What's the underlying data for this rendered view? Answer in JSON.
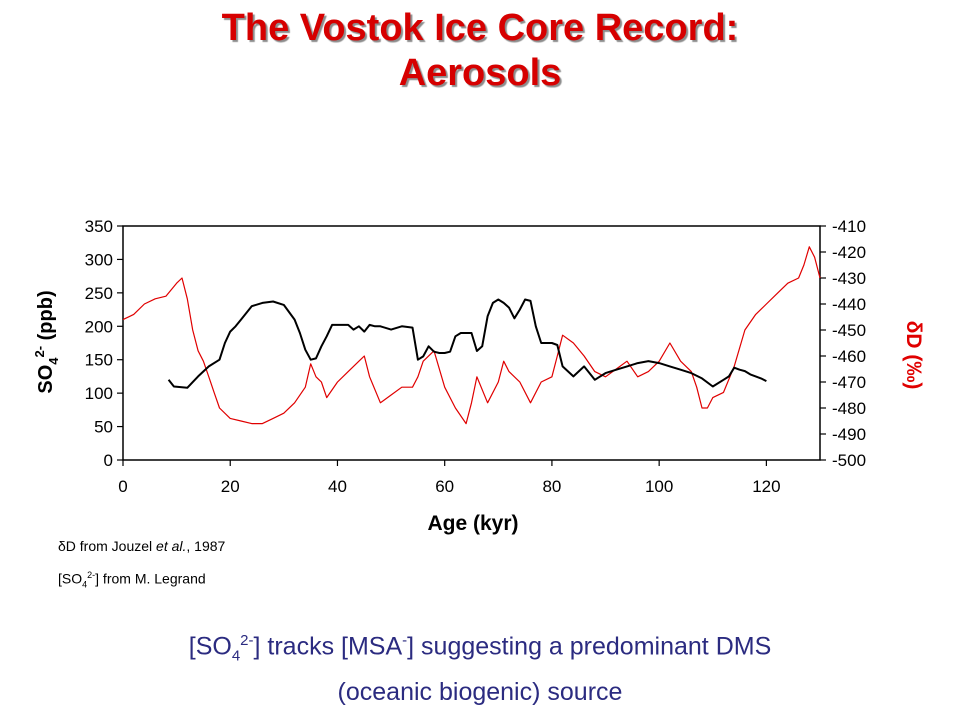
{
  "title": {
    "line1": "The Vostok Ice Core Record:",
    "line2": "Aerosols"
  },
  "credits": {
    "line1": {
      "delta": "δ",
      "pre": "D from Jouzel ",
      "ital": "et al.",
      "post": ", 1987"
    },
    "line2": {
      "open": "[SO",
      "sub": "4",
      "sup": "2-",
      "close": "] from M. Legrand"
    }
  },
  "conclusion": {
    "part1": "[SO",
    "sub1": "4",
    "sup1": "2-",
    "part2": "] tracks [MSA",
    "sup2": "-",
    "part3": "] suggesting a predominant DMS",
    "line2": "(oceanic biogenic) source"
  },
  "colors": {
    "sulfate": "#000000",
    "deuterium": "#e00000",
    "title": "#d60000",
    "conclusion": "#2b2b80"
  },
  "chart_data": {
    "type": "line",
    "xlabel": "Age (kyr)",
    "ylabel_left": {
      "base": "SO",
      "sub": "4",
      "sup": "2-",
      "rest": " (ppb)"
    },
    "ylabel_right": {
      "delta": "δ",
      "rest": "D (‰)"
    },
    "xlim": [
      0,
      130
    ],
    "ylim_left": [
      0,
      350
    ],
    "ylim_right": [
      -500,
      -410
    ],
    "x_ticks": [
      0,
      20,
      40,
      60,
      80,
      100,
      120
    ],
    "y_left_ticks": [
      0,
      50,
      100,
      150,
      200,
      250,
      300,
      350
    ],
    "y_right_ticks": [
      -410,
      -420,
      -430,
      -440,
      -450,
      -460,
      -470,
      -480,
      -490,
      -500
    ],
    "grid": false,
    "legend": "none",
    "series": [
      {
        "axis": "left",
        "color": "#000000",
        "x": [
          8.5,
          9.5,
          12,
          14,
          16,
          18,
          19,
          20,
          21,
          22,
          24,
          26,
          28,
          30,
          32,
          33,
          34,
          35,
          36,
          37,
          38,
          39,
          40,
          42,
          43,
          44,
          45,
          46,
          47,
          48,
          50,
          52,
          54,
          55,
          56,
          57,
          58,
          59,
          60,
          61,
          62,
          63,
          64,
          65,
          66,
          67,
          68,
          69,
          70,
          71,
          72,
          73,
          74,
          75,
          76,
          77,
          78,
          80,
          81,
          82,
          84,
          86,
          88,
          90,
          92,
          94,
          96,
          98,
          100,
          102,
          104,
          106,
          108,
          110,
          112,
          113,
          114,
          115,
          116,
          117,
          118,
          119,
          120
        ],
        "values": [
          120,
          110,
          108,
          125,
          140,
          150,
          175,
          192,
          200,
          210,
          230,
          235,
          237,
          232,
          210,
          190,
          165,
          150,
          152,
          170,
          185,
          202,
          202,
          202,
          195,
          200,
          192,
          202,
          200,
          200,
          195,
          200,
          198,
          150,
          155,
          170,
          162,
          160,
          160,
          162,
          185,
          190,
          190,
          190,
          163,
          170,
          215,
          235,
          240,
          235,
          228,
          212,
          225,
          240,
          238,
          200,
          175,
          175,
          172,
          140,
          125,
          140,
          120,
          130,
          135,
          140,
          145,
          148,
          145,
          140,
          135,
          130,
          122,
          110,
          120,
          125,
          138,
          135,
          133,
          128,
          125,
          122,
          118
        ]
      },
      {
        "axis": "right",
        "color": "#e00000",
        "x": [
          0,
          2,
          4,
          6,
          8,
          10,
          11,
          12,
          13,
          14,
          15,
          16,
          17,
          18,
          20,
          22,
          24,
          26,
          28,
          30,
          32,
          34,
          35,
          36,
          37,
          38,
          40,
          42,
          44,
          45,
          46,
          48,
          50,
          52,
          54,
          55,
          56,
          58,
          60,
          62,
          64,
          65,
          66,
          68,
          70,
          71,
          72,
          74,
          76,
          78,
          80,
          81,
          82,
          84,
          86,
          88,
          90,
          92,
          94,
          96,
          98,
          100,
          102,
          104,
          106,
          107,
          108,
          109,
          110,
          112,
          114,
          116,
          118,
          120,
          122,
          124,
          126,
          127,
          128,
          129,
          130
        ],
        "values": [
          -446,
          -444,
          -440,
          -438,
          -437,
          -432,
          -430,
          -438,
          -450,
          -458,
          -462,
          -468,
          -474,
          -480,
          -484,
          -485,
          -486,
          -486,
          -484,
          -482,
          -478,
          -472,
          -463,
          -468,
          -470,
          -476,
          -470,
          -466,
          -462,
          -460,
          -468,
          -478,
          -475,
          -472,
          -472,
          -468,
          -462,
          -458,
          -472,
          -480,
          -486,
          -478,
          -468,
          -478,
          -470,
          -462,
          -466,
          -470,
          -478,
          -470,
          -468,
          -460,
          -452,
          -455,
          -460,
          -466,
          -468,
          -465,
          -462,
          -468,
          -466,
          -462,
          -455,
          -462,
          -466,
          -472,
          -480,
          -480,
          -476,
          -474,
          -464,
          -450,
          -444,
          -440,
          -436,
          -432,
          -430,
          -425,
          -418,
          -422,
          -430
        ]
      }
    ]
  }
}
